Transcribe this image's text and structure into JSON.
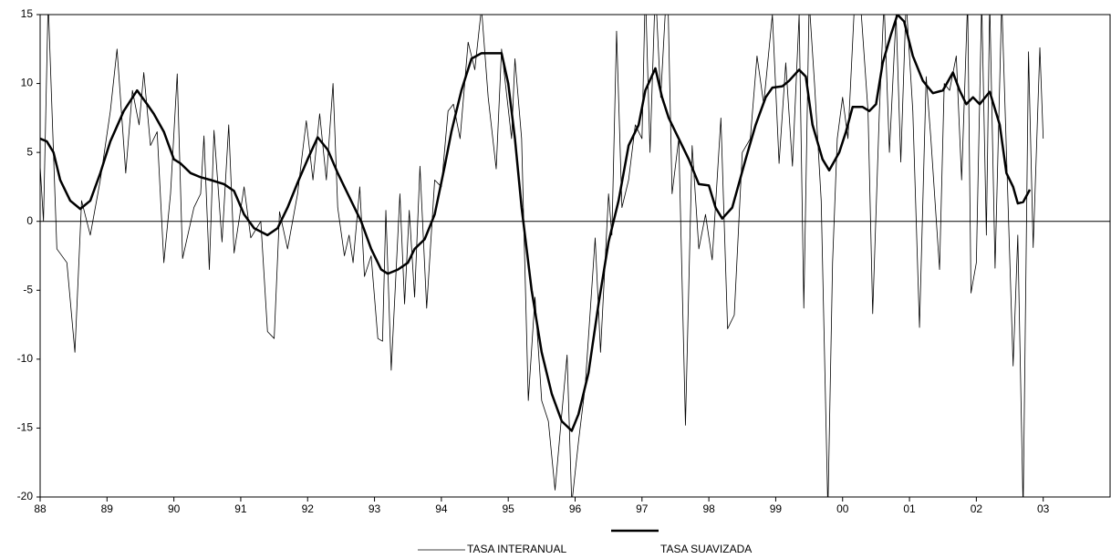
{
  "chart_data": {
    "type": "line",
    "xlim": [
      1988,
      2004
    ],
    "xticks": [
      {
        "value": 1988,
        "label": "88"
      },
      {
        "value": 1989,
        "label": "89"
      },
      {
        "value": 1990,
        "label": "90"
      },
      {
        "value": 1991,
        "label": "91"
      },
      {
        "value": 1992,
        "label": "92"
      },
      {
        "value": 1993,
        "label": "93"
      },
      {
        "value": 1994,
        "label": "94"
      },
      {
        "value": 1995,
        "label": "95"
      },
      {
        "value": 1996,
        "label": "96"
      },
      {
        "value": 1997,
        "label": "97"
      },
      {
        "value": 1998,
        "label": "98"
      },
      {
        "value": 1999,
        "label": "99"
      },
      {
        "value": 2000,
        "label": "00"
      },
      {
        "value": 2001,
        "label": "01"
      },
      {
        "value": 2002,
        "label": "02"
      },
      {
        "value": 2003,
        "label": "03"
      }
    ],
    "ylim": [
      -20,
      15
    ],
    "yticks": [
      -20,
      -15,
      -10,
      -5,
      0,
      5,
      10,
      15
    ],
    "zero_line": true,
    "series": [
      {
        "name": "TASA INTERANUAL",
        "color": "#000000",
        "width": 0.8,
        "x": [
          1988.0,
          1988.05,
          1988.12,
          1988.25,
          1988.4,
          1988.52,
          1988.62,
          1988.75,
          1988.9,
          1989.05,
          1989.15,
          1989.28,
          1989.38,
          1989.48,
          1989.55,
          1989.65,
          1989.75,
          1989.85,
          1989.95,
          1990.05,
          1990.13,
          1990.3,
          1990.4,
          1990.45,
          1990.53,
          1990.6,
          1990.72,
          1990.82,
          1990.9,
          1991.05,
          1991.15,
          1991.3,
          1991.4,
          1991.5,
          1991.58,
          1991.7,
          1991.85,
          1991.98,
          1992.08,
          1992.18,
          1992.28,
          1992.38,
          1992.45,
          1992.55,
          1992.62,
          1992.68,
          1992.78,
          1992.85,
          1992.95,
          1993.05,
          1993.12,
          1993.17,
          1993.25,
          1993.38,
          1993.45,
          1993.52,
          1993.6,
          1993.68,
          1993.78,
          1993.9,
          1994.0,
          1994.1,
          1994.18,
          1994.28,
          1994.4,
          1994.5,
          1994.6,
          1994.7,
          1994.82,
          1994.9,
          1995.05,
          1995.1,
          1995.2,
          1995.3,
          1995.4,
          1995.5,
          1995.6,
          1995.7,
          1995.8,
          1995.88,
          1995.95,
          1996.05,
          1996.15,
          1996.3,
          1996.38,
          1996.5,
          1996.55,
          1996.62,
          1996.7,
          1996.8,
          1996.9,
          1997.0,
          1997.05,
          1997.12,
          1997.2,
          1997.28,
          1997.38,
          1997.45,
          1997.55,
          1997.65,
          1997.75,
          1997.85,
          1997.95,
          1998.05,
          1998.18,
          1998.28,
          1998.38,
          1998.5,
          1998.62,
          1998.72,
          1998.82,
          1998.95,
          1999.05,
          1999.15,
          1999.25,
          1999.35,
          1999.42,
          1999.5,
          1999.58,
          1999.68,
          1999.78,
          1999.85,
          1999.92,
          2000.0,
          2000.08,
          2000.18,
          2000.28,
          2000.38,
          2000.45,
          2000.55,
          2000.62,
          2000.7,
          2000.8,
          2000.87,
          2000.95,
          2001.05,
          2001.15,
          2001.25,
          2001.32,
          2001.45,
          2001.52,
          2001.6,
          2001.7,
          2001.78,
          2001.87,
          2001.92,
          2002.0,
          2002.08,
          2002.15,
          2002.2,
          2002.28,
          2002.38,
          2002.45,
          2002.55,
          2002.62,
          2002.7,
          2002.78,
          2002.85,
          2002.95,
          2003.0
        ],
        "values": [
          4,
          0,
          16,
          -2,
          -3,
          -9.5,
          1.5,
          -1,
          3,
          8,
          12.5,
          3.5,
          9.5,
          7,
          10.8,
          5.5,
          6.5,
          -3,
          2,
          10.7,
          -2.7,
          1,
          2,
          6.2,
          -3.5,
          6.6,
          -1.5,
          7,
          -2.3,
          2.5,
          -1.2,
          0,
          -8,
          -8.5,
          0.7,
          -2,
          2,
          7.3,
          3,
          7.8,
          3,
          10,
          1,
          -2.5,
          -1,
          -3,
          2.5,
          -4,
          -2.5,
          -8.5,
          -8.7,
          0.8,
          -10.8,
          2,
          -6,
          0.8,
          -5.5,
          4,
          -6.3,
          3,
          2.5,
          8,
          8.5,
          6,
          13,
          11,
          15.5,
          9,
          3.8,
          12.5,
          6,
          11.8,
          6,
          -13,
          -5.5,
          -13,
          -14.5,
          -19.5,
          -14,
          -9.7,
          -20.5,
          -16,
          -12,
          -1.2,
          -9.5,
          2,
          -1,
          13.8,
          1,
          3,
          7,
          6,
          17,
          5,
          17,
          9,
          18,
          2,
          6,
          -14.8,
          5.5,
          -2,
          0.5,
          -2.8,
          7.5,
          -7.8,
          -6.8,
          5,
          6,
          12,
          8.5,
          15,
          4.2,
          11.5,
          4,
          15,
          -6.3,
          16,
          10,
          1.5,
          -21,
          -3,
          6,
          9,
          6,
          16,
          15,
          8,
          -6.7,
          8,
          16,
          5,
          15,
          4.3,
          16,
          8,
          -7.7,
          10.5,
          6,
          -3.5,
          10,
          9.5,
          12,
          3,
          16,
          -5.2,
          -3,
          16,
          -1,
          16,
          -3.4,
          16,
          5,
          -10.5,
          -1,
          -21,
          12.3,
          -1.9,
          12.6,
          6
        ]
      },
      {
        "name": "TASA SUAVIZADA",
        "color": "#000000",
        "width": 2.5,
        "x": [
          1988.0,
          1988.1,
          1988.2,
          1988.3,
          1988.45,
          1988.6,
          1988.75,
          1988.9,
          1989.05,
          1989.25,
          1989.45,
          1989.6,
          1989.7,
          1989.85,
          1990.0,
          1990.1,
          1990.25,
          1990.4,
          1990.55,
          1990.75,
          1990.9,
          1991.05,
          1991.2,
          1991.4,
          1991.55,
          1991.7,
          1991.85,
          1992.0,
          1992.15,
          1992.3,
          1992.45,
          1992.6,
          1992.8,
          1992.95,
          1993.1,
          1993.2,
          1993.35,
          1993.5,
          1993.6,
          1993.75,
          1993.9,
          1994.05,
          1994.15,
          1994.3,
          1994.45,
          1994.6,
          1994.75,
          1994.9,
          1995.0,
          1995.1,
          1995.2,
          1995.35,
          1995.5,
          1995.65,
          1995.8,
          1995.95,
          1996.05,
          1996.2,
          1996.35,
          1996.5,
          1996.65,
          1996.8,
          1996.95,
          1997.05,
          1997.2,
          1997.3,
          1997.4,
          1997.55,
          1997.7,
          1997.85,
          1998.0,
          1998.1,
          1998.2,
          1998.35,
          1998.55,
          1998.7,
          1998.85,
          1998.95,
          1999.1,
          1999.2,
          1999.35,
          1999.45,
          1999.55,
          1999.7,
          1999.8,
          1999.95,
          2000.05,
          2000.15,
          2000.3,
          2000.4,
          2000.5,
          2000.6,
          2000.72,
          2000.82,
          2000.92,
          2001.05,
          2001.2,
          2001.35,
          2001.5,
          2001.65,
          2001.75,
          2001.85,
          2001.95,
          2002.05,
          2002.2,
          2002.35,
          2002.45,
          2002.55,
          2002.62,
          2002.7,
          2002.8
        ],
        "values": [
          6,
          5.8,
          5,
          3,
          1.5,
          0.9,
          1.5,
          3.5,
          5.8,
          8,
          9.5,
          8.5,
          7.8,
          6.5,
          4.5,
          4.2,
          3.5,
          3.2,
          3,
          2.7,
          2.2,
          0.5,
          -0.5,
          -1,
          -0.5,
          1,
          2.8,
          4.5,
          6.1,
          5.2,
          3.5,
          2,
          0,
          -2,
          -3.5,
          -3.8,
          -3.5,
          -3,
          -2,
          -1.3,
          0.5,
          4,
          6.5,
          9.5,
          11.8,
          12.2,
          12.2,
          12.2,
          10,
          6,
          1,
          -5,
          -9.5,
          -12.5,
          -14.5,
          -15.2,
          -14,
          -11,
          -6,
          -1.5,
          1.5,
          5.5,
          7,
          9.5,
          11.1,
          9,
          7.5,
          6,
          4.5,
          2.7,
          2.6,
          1,
          0.2,
          1,
          4.5,
          7,
          9,
          9.7,
          9.8,
          10.2,
          11,
          10.5,
          7,
          4.5,
          3.7,
          5,
          6.5,
          8.3,
          8.3,
          8,
          8.5,
          11.5,
          13.5,
          15,
          14.5,
          12,
          10.2,
          9.3,
          9.5,
          10.8,
          9.5,
          8.5,
          9,
          8.5,
          9.4,
          7,
          3.5,
          2.5,
          1.3,
          1.4,
          2.3
        ]
      }
    ]
  }
}
